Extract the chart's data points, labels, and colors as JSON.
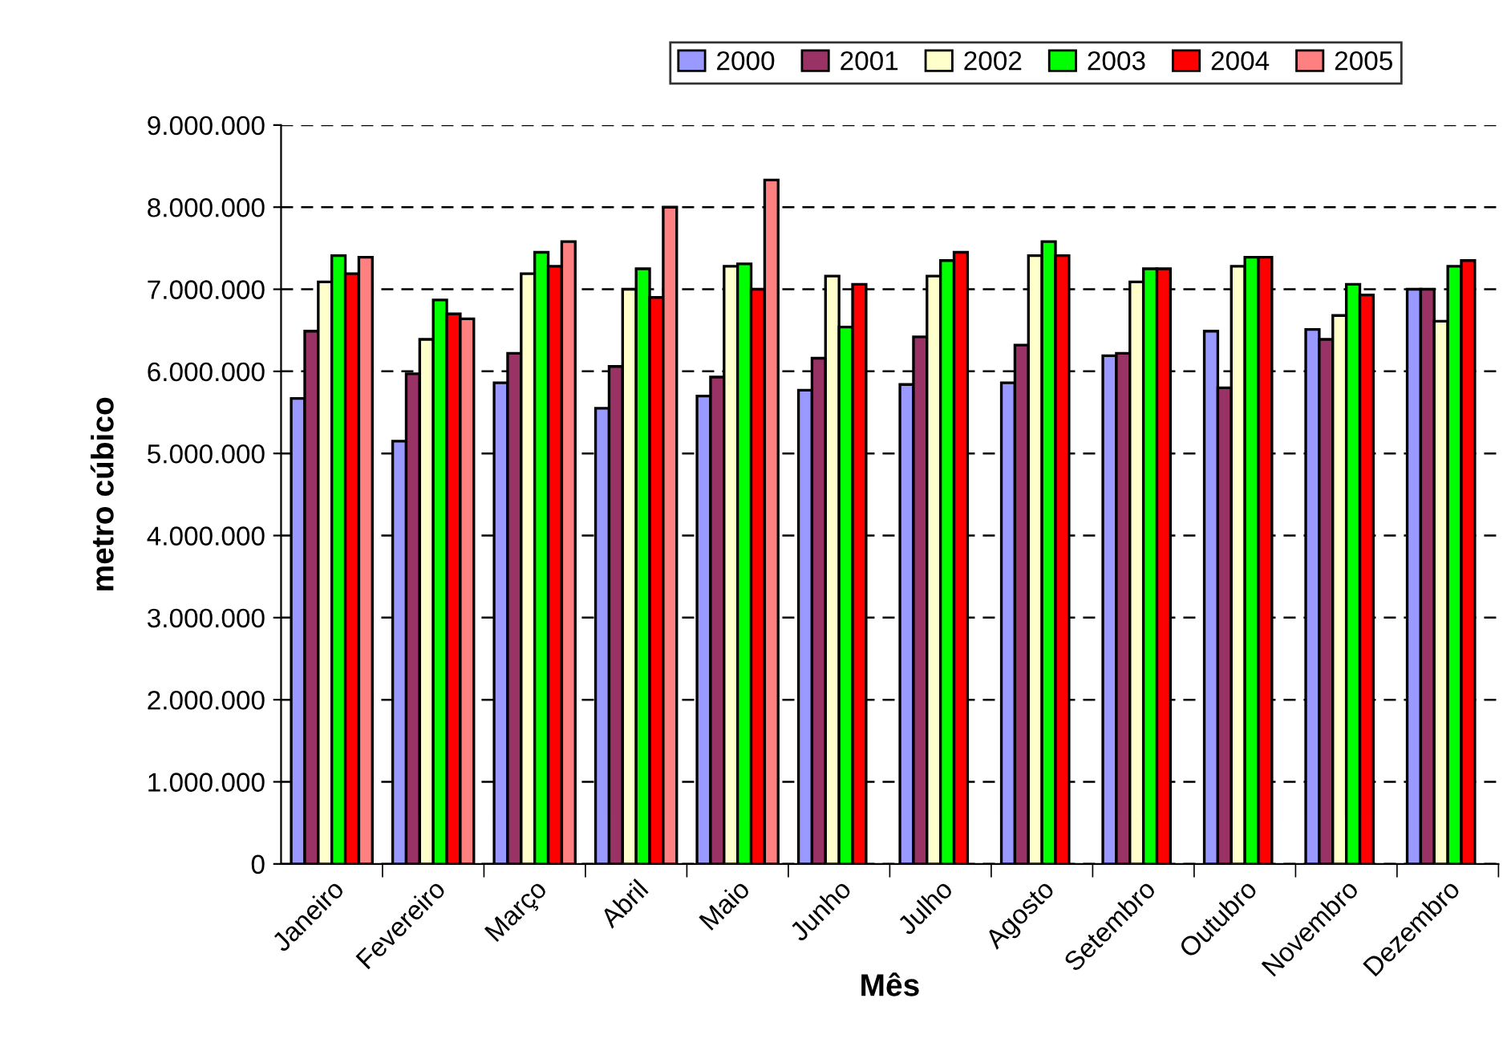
{
  "chart_data": {
    "type": "bar",
    "xlabel": "Mês",
    "ylabel": "metro cúbico",
    "categories": [
      "Janeiro",
      "Fevereiro",
      "Março",
      "Abril",
      "Maio",
      "Junho",
      "Julho",
      "Agosto",
      "Setembro",
      "Outubro",
      "Novembro",
      "Dezembro"
    ],
    "series": [
      {
        "name": "2000",
        "color": "#9999ff",
        "values": [
          5670000,
          5150000,
          5860000,
          5550000,
          5700000,
          5770000,
          5840000,
          5860000,
          6190000,
          6490000,
          6510000,
          7000000
        ]
      },
      {
        "name": "2001",
        "color": "#993366",
        "values": [
          6490000,
          5970000,
          6220000,
          6060000,
          5930000,
          6160000,
          6420000,
          6320000,
          6220000,
          5800000,
          6390000,
          7000000
        ]
      },
      {
        "name": "2002",
        "color": "#ffffcc",
        "values": [
          7090000,
          6390000,
          7190000,
          7000000,
          7280000,
          7160000,
          7160000,
          7410000,
          7090000,
          7280000,
          6680000,
          6610000
        ]
      },
      {
        "name": "2003",
        "color": "#00ff00",
        "values": [
          7410000,
          6870000,
          7450000,
          7250000,
          7310000,
          6540000,
          7350000,
          7580000,
          7250000,
          7390000,
          7060000,
          7280000
        ]
      },
      {
        "name": "2004",
        "color": "#ff0000",
        "values": [
          7190000,
          6700000,
          7280000,
          6900000,
          7000000,
          7060000,
          7450000,
          7410000,
          7250000,
          7390000,
          6930000,
          7350000
        ]
      },
      {
        "name": "2005",
        "color": "#ff8080",
        "values": [
          7390000,
          6640000,
          7580000,
          8000000,
          8330000,
          null,
          null,
          null,
          null,
          null,
          null,
          null
        ]
      }
    ],
    "ylim": [
      0,
      9000000
    ],
    "yticks": [
      {
        "value": 0,
        "label": "0"
      },
      {
        "value": 1000000,
        "label": "1.000.000"
      },
      {
        "value": 2000000,
        "label": "2.000.000"
      },
      {
        "value": 3000000,
        "label": "3.000.000"
      },
      {
        "value": 4000000,
        "label": "4.000.000"
      },
      {
        "value": 5000000,
        "label": "5.000.000"
      },
      {
        "value": 6000000,
        "label": "6.000.000"
      },
      {
        "value": 7000000,
        "label": "7.000.000"
      },
      {
        "value": 8000000,
        "label": "8.000.000"
      },
      {
        "value": 9000000,
        "label": "9.000.000"
      }
    ],
    "grid": "y",
    "legend": "top"
  }
}
